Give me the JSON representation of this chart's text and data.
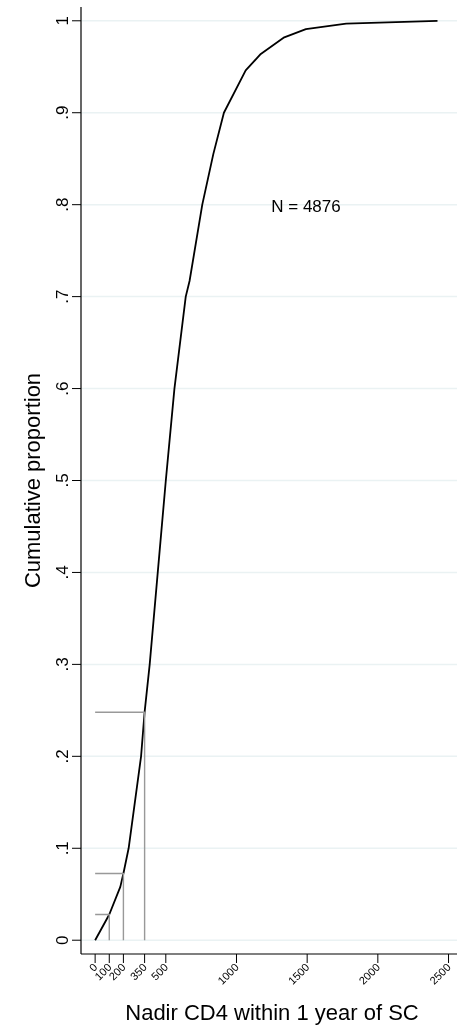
{
  "chart_data": {
    "type": "line",
    "xlabel": "Nadir CD4 within 1 year of SC",
    "ylabel": "Cumulative proportion",
    "annotations": [
      "N = 4876"
    ],
    "xlim": [
      -100,
      2560
    ],
    "ylim": [
      -0.015,
      1.015
    ],
    "xticks": [
      0,
      100,
      200,
      350,
      500,
      1000,
      1500,
      2000,
      2500
    ],
    "yticks": [
      0,
      {
        "value": 0.1,
        "label": ".1"
      },
      {
        "value": 0.2,
        "label": ".2"
      },
      {
        "value": 0.3,
        "label": ".3"
      },
      {
        "value": 0.4,
        "label": ".4"
      },
      {
        "value": 0.5,
        "label": ".5"
      },
      {
        "value": 0.6,
        "label": ".6"
      },
      {
        "value": 0.7,
        "label": ".7"
      },
      {
        "value": 0.8,
        "label": ".8"
      },
      {
        "value": 0.9,
        "label": ".9"
      },
      1
    ],
    "grid": "y",
    "series": [
      {
        "color": "#000000",
        "x": [
          0,
          100,
          178,
          200,
          237,
          325,
          350,
          386,
          443,
          500,
          561,
          641,
          668,
          758,
          836,
          911,
          1065,
          1172,
          1338,
          1491,
          1776,
          2422
        ],
        "values": [
          0,
          0.028,
          0.058,
          0.0725,
          0.1,
          0.2,
          0.248,
          0.3,
          0.4,
          0.5,
          0.6,
          0.7,
          0.717,
          0.8,
          0.855,
          0.9,
          0.946,
          0.964,
          0.982,
          0.991,
          0.997,
          1.0
        ]
      },
      {
        "color": "#999999",
        "x": [
          0,
          100,
          100
        ],
        "values": [
          0.028,
          0.028,
          0
        ]
      },
      {
        "color": "#999999",
        "x": [
          0,
          200,
          200
        ],
        "values": [
          0.0725,
          0.0725,
          0
        ]
      },
      {
        "color": "#999999",
        "x": [
          0,
          350,
          350
        ],
        "values": [
          0.248,
          0.248,
          0
        ]
      }
    ]
  }
}
